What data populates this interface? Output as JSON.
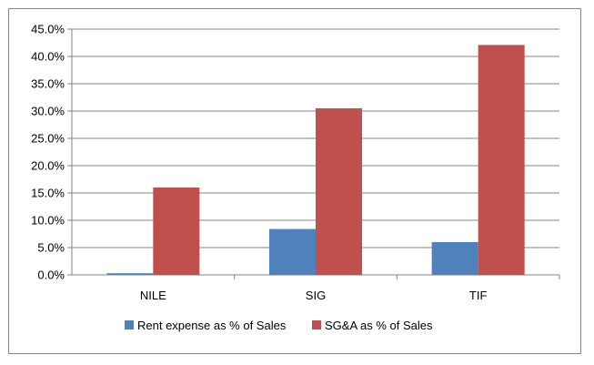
{
  "chart_data": {
    "type": "bar",
    "categories": [
      "NILE",
      "SIG",
      "TIF"
    ],
    "series": [
      {
        "name": "Rent expense as % of Sales",
        "values": [
          0.3,
          8.4,
          6.0
        ],
        "color": "#4F81BD"
      },
      {
        "name": "SG&A as % of Sales",
        "values": [
          16.0,
          30.5,
          42.1
        ],
        "color": "#C0504D"
      }
    ],
    "title": "",
    "xlabel": "",
    "ylabel": "",
    "ylim": [
      0,
      45
    ],
    "ytick_step": 5,
    "ytick_labels": [
      "0.0%",
      "5.0%",
      "10.0%",
      "15.0%",
      "20.0%",
      "25.0%",
      "30.0%",
      "35.0%",
      "40.0%",
      "45.0%"
    ],
    "grid": true,
    "legend": "bottom"
  }
}
